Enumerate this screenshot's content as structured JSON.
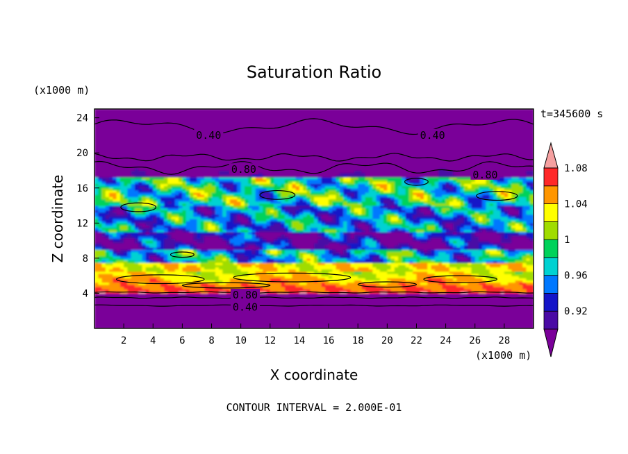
{
  "chart_data": {
    "type": "heatmap",
    "title": "Saturation Ratio",
    "xlabel": "X coordinate",
    "ylabel": "Z coordinate",
    "x_unit": "(x1000 m)",
    "y_unit": "(x1000 m)",
    "time_label": "t=345600 s",
    "footer": "CONTOUR INTERVAL = 2.000E-01",
    "xlim": [
      0,
      30
    ],
    "ylim": [
      0,
      25
    ],
    "x_ticks": [
      2,
      4,
      6,
      8,
      10,
      12,
      14,
      16,
      18,
      20,
      22,
      24,
      26,
      28
    ],
    "y_ticks": [
      4,
      8,
      12,
      16,
      20,
      24
    ],
    "colorbar": {
      "levels": [
        0.92,
        0.94,
        0.96,
        0.98,
        1.0,
        1.02,
        1.04,
        1.06,
        1.08,
        1.1
      ],
      "tick_labels": [
        "0.92",
        "0.96",
        "1",
        "1.04",
        "1.08"
      ],
      "tick_values": [
        0.92,
        0.96,
        1.0,
        1.04,
        1.08
      ],
      "colors": [
        "#7a0099",
        "#4a0aa5",
        "#1414c8",
        "#0078ff",
        "#00d2d2",
        "#00d25a",
        "#a0dc00",
        "#ffff00",
        "#ff9600",
        "#ff2828",
        "#f5a0a0"
      ]
    },
    "contour_labels": [
      {
        "text": "0.40",
        "x": 7.8,
        "z": 22.0
      },
      {
        "text": "0.40",
        "x": 23.1,
        "z": 22.0
      },
      {
        "text": "0.80",
        "x": 10.2,
        "z": 18.1
      },
      {
        "text": "0.80",
        "x": 26.7,
        "z": 17.5
      },
      {
        "text": "0.80",
        "x": 10.3,
        "z": 3.8
      },
      {
        "text": "0.40",
        "x": 10.3,
        "z": 2.4
      }
    ]
  }
}
